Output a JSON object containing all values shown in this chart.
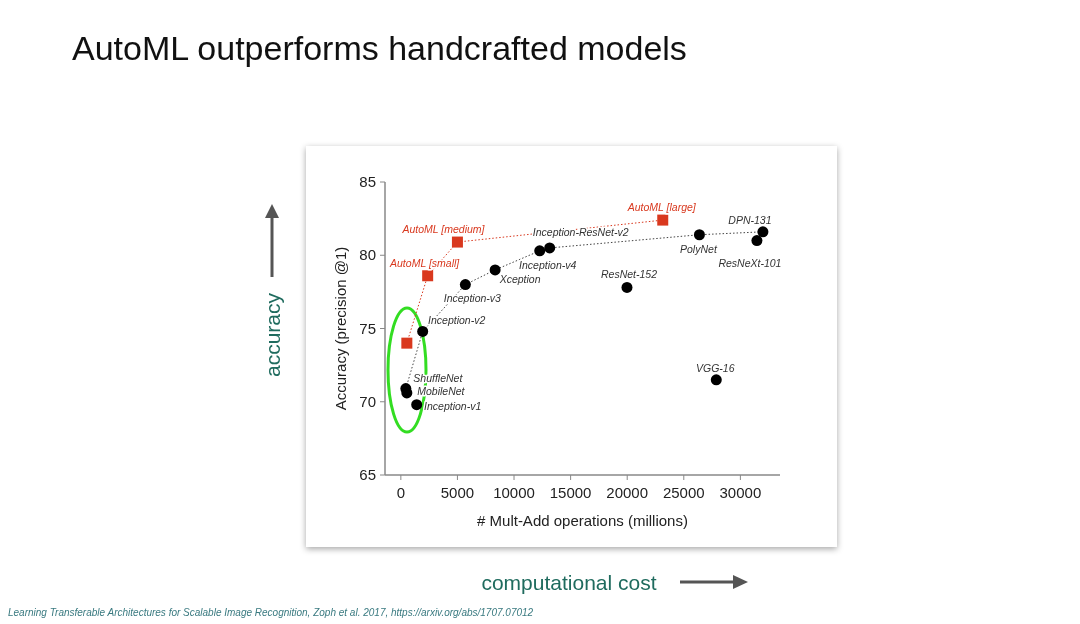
{
  "chart_data": {
    "type": "scatter",
    "title": "AutoML outperforms handcrafted models",
    "xlabel": "# Mult-Add operations (millions)",
    "ylabel": "Accuracy (precision @1)",
    "xlim": [
      -1400,
      33500
    ],
    "ylim": [
      65,
      85
    ],
    "xticks": [
      0,
      5000,
      10000,
      15000,
      20000,
      25000,
      30000
    ],
    "yticks": [
      65,
      70,
      75,
      80,
      85
    ],
    "grid": false,
    "series": [
      {
        "type": "line",
        "color": "#d9381e",
        "marker": "square",
        "line_style": "dotted",
        "x": [
          530,
          2370,
          5000,
          23140
        ],
        "values": [
          74.0,
          78.6,
          80.9,
          82.4
        ]
      },
      {
        "type": "line",
        "color": "#444444",
        "marker": "none",
        "line_style": "dotted",
        "x": [
          440,
          1930,
          5700,
          8330,
          12270,
          13150,
          26380,
          31990
        ],
        "values": [
          70.9,
          74.8,
          78.0,
          79.0,
          80.3,
          80.5,
          81.4,
          81.6
        ]
      },
      {
        "color": "#000000",
        "marker": "circle",
        "x": [
          440,
          530,
          1400,
          1930,
          5700,
          8330,
          12270,
          13150,
          19980,
          26380,
          31990,
          31460,
          27870
        ],
        "values": [
          70.9,
          70.6,
          69.8,
          74.8,
          78.0,
          79.0,
          80.3,
          80.5,
          77.8,
          81.4,
          81.6,
          81.0,
          71.5
        ]
      }
    ],
    "annotations": [
      {
        "text": "AutoML [small]",
        "x": 2370,
        "y": 78.6
      },
      {
        "text": "AutoML [medium]",
        "x": 5000,
        "y": 80.9
      },
      {
        "text": "AutoML [large]",
        "x": 23140,
        "y": 82.4
      },
      {
        "text": "Inception-ResNet-v2",
        "x": 13150,
        "y": 80.5
      },
      {
        "text": "Inception-v4",
        "x": 12270,
        "y": 80.3
      },
      {
        "text": "Xception",
        "x": 8330,
        "y": 79.0
      },
      {
        "text": "Inception-v3",
        "x": 5700,
        "y": 78.0
      },
      {
        "text": "Inception-v2",
        "x": 1930,
        "y": 74.8
      },
      {
        "text": "ShuffleNet",
        "x": 440,
        "y": 70.9
      },
      {
        "text": "MobileNet",
        "x": 530,
        "y": 70.6
      },
      {
        "text": "Inception-v1",
        "x": 1400,
        "y": 69.8
      },
      {
        "text": "ResNet-152",
        "x": 19980,
        "y": 77.8
      },
      {
        "text": "PolyNet",
        "x": 26380,
        "y": 81.4
      },
      {
        "text": "DPN-131",
        "x": 31990,
        "y": 81.6
      },
      {
        "text": "ResNeXt-101",
        "x": 31460,
        "y": 81.0
      },
      {
        "text": "VGG-16",
        "x": 27870,
        "y": 71.5
      },
      "accuracy",
      "computational cost",
      "Learning Transferable Architectures for Scalable Image Recognition, Zoph et al. 2017, https://arxiv.org/abs/1707.07012"
    ]
  }
}
